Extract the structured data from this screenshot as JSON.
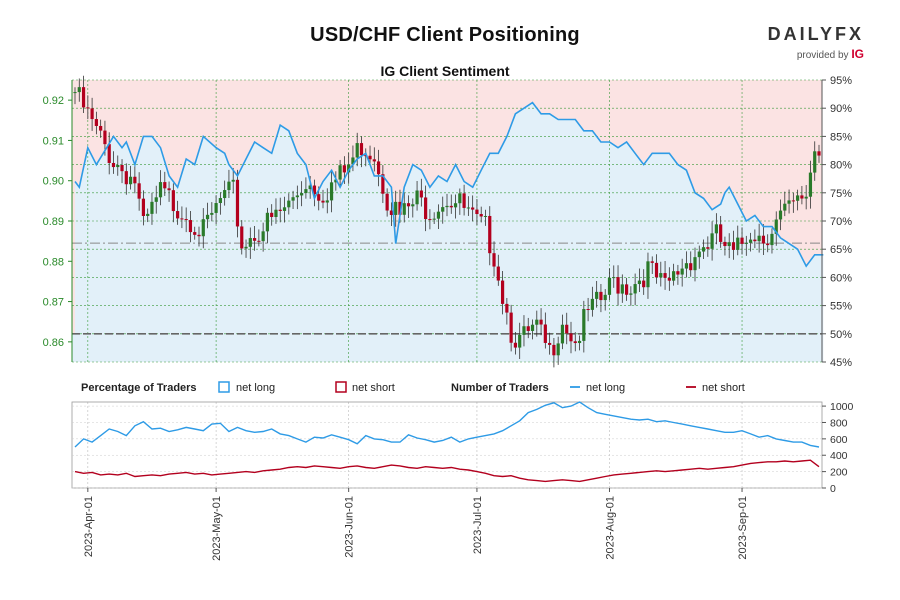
{
  "chart_data": {
    "type": "candlestick_with_sentiment",
    "title": "USD/CHF Client Positioning",
    "subtitle": "IG Client Sentiment",
    "brand": {
      "name": "DAILYFX",
      "provided_by": "provided by",
      "provider": "IG"
    },
    "price_axis": {
      "ticks": [
        "0.92",
        "0.91",
        "0.90",
        "0.89",
        "0.88",
        "0.87",
        "0.86"
      ],
      "ylim": [
        0.855,
        0.925
      ]
    },
    "percent_axis": {
      "ticks": [
        "95%",
        "90%",
        "85%",
        "80%",
        "75%",
        "70%",
        "65%",
        "60%",
        "55%",
        "50%",
        "45%"
      ],
      "ylim": [
        45,
        95
      ]
    },
    "count_axis": {
      "ticks": [
        "1000",
        "800",
        "600",
        "400",
        "200",
        "0"
      ],
      "ylim": [
        0,
        1050
      ]
    },
    "date_labels": [
      "2023-Apr-01",
      "2023-May-01",
      "2023-Jun-01",
      "2023-Jul-01",
      "2023-Aug-01",
      "2023-Sep-01"
    ],
    "date_index": [
      3,
      33,
      64,
      94,
      125,
      156
    ],
    "n_days": 175,
    "reference_lines": {
      "price_dash": 0.8845,
      "percent_50": 50
    },
    "legend": {
      "pct_title": "Percentage of Traders",
      "num_title": "Number of Traders",
      "net_long": "net long",
      "net_short": "net short"
    },
    "colors": {
      "long": "#2e9be6",
      "short": "#b3001e",
      "up": "#2a7a2a",
      "down": "#b3001e",
      "axis_green": "#2a8a2a",
      "bg_long": "#e2f0f9",
      "bg_short": "#fbe3e3"
    },
    "close_path": [
      [
        0,
        0.922
      ],
      [
        5,
        0.912
      ],
      [
        9,
        0.905
      ],
      [
        14,
        0.9
      ],
      [
        16,
        0.888
      ],
      [
        20,
        0.897
      ],
      [
        26,
        0.892
      ],
      [
        30,
        0.887
      ],
      [
        34,
        0.895
      ],
      [
        37,
        0.897
      ],
      [
        39,
        0.884
      ],
      [
        42,
        0.887
      ],
      [
        46,
        0.89
      ],
      [
        50,
        0.894
      ],
      [
        54,
        0.9
      ],
      [
        58,
        0.897
      ],
      [
        63,
        0.902
      ],
      [
        67,
        0.909
      ],
      [
        70,
        0.907
      ],
      [
        73,
        0.896
      ],
      [
        76,
        0.891
      ],
      [
        80,
        0.895
      ],
      [
        83,
        0.893
      ],
      [
        87,
        0.896
      ],
      [
        90,
        0.894
      ],
      [
        94,
        0.889
      ],
      [
        96,
        0.888
      ],
      [
        98,
        0.882
      ],
      [
        100,
        0.872
      ],
      [
        102,
        0.863
      ],
      [
        104,
        0.86
      ],
      [
        108,
        0.863
      ],
      [
        111,
        0.857
      ],
      [
        114,
        0.866
      ],
      [
        117,
        0.86
      ],
      [
        120,
        0.867
      ],
      [
        123,
        0.87
      ],
      [
        126,
        0.875
      ],
      [
        130,
        0.874
      ],
      [
        134,
        0.878
      ],
      [
        138,
        0.873
      ],
      [
        142,
        0.879
      ],
      [
        146,
        0.883
      ],
      [
        150,
        0.886
      ],
      [
        154,
        0.881
      ],
      [
        158,
        0.888
      ],
      [
        161,
        0.886
      ],
      [
        165,
        0.891
      ],
      [
        169,
        0.894
      ],
      [
        171,
        0.897
      ],
      [
        173,
        0.908
      ]
    ],
    "long_pct_path": [
      [
        0,
        77
      ],
      [
        1,
        76
      ],
      [
        3,
        83
      ],
      [
        5,
        80
      ],
      [
        9,
        85
      ],
      [
        11,
        83
      ],
      [
        12,
        84
      ],
      [
        14,
        80
      ],
      [
        16,
        85
      ],
      [
        18,
        85
      ],
      [
        20,
        83
      ],
      [
        22,
        78
      ],
      [
        24,
        76
      ],
      [
        26,
        81
      ],
      [
        28,
        80
      ],
      [
        30,
        85
      ],
      [
        33,
        83
      ],
      [
        35,
        82
      ],
      [
        36,
        80
      ],
      [
        38,
        78
      ],
      [
        40,
        81
      ],
      [
        42,
        84
      ],
      [
        44,
        83
      ],
      [
        46,
        82
      ],
      [
        48,
        87
      ],
      [
        50,
        86
      ],
      [
        52,
        82
      ],
      [
        54,
        80
      ],
      [
        56,
        74
      ],
      [
        58,
        77
      ],
      [
        60,
        79
      ],
      [
        62,
        76
      ],
      [
        64,
        79
      ],
      [
        66,
        81
      ],
      [
        68,
        82
      ],
      [
        70,
        78
      ],
      [
        72,
        78
      ],
      [
        74,
        76
      ],
      [
        75,
        66
      ],
      [
        77,
        76
      ],
      [
        79,
        80
      ],
      [
        81,
        79
      ],
      [
        83,
        76
      ],
      [
        85,
        78
      ],
      [
        87,
        77
      ],
      [
        89,
        80
      ],
      [
        91,
        77
      ],
      [
        93,
        76
      ],
      [
        95,
        79
      ],
      [
        97,
        82
      ],
      [
        99,
        82
      ],
      [
        101,
        85
      ],
      [
        103,
        89
      ],
      [
        105,
        90
      ],
      [
        107,
        91
      ],
      [
        109,
        89
      ],
      [
        111,
        89
      ],
      [
        113,
        88
      ],
      [
        115,
        88
      ],
      [
        117,
        88
      ],
      [
        119,
        86
      ],
      [
        121,
        86
      ],
      [
        123,
        84
      ],
      [
        125,
        84
      ],
      [
        127,
        83
      ],
      [
        129,
        84
      ],
      [
        131,
        82
      ],
      [
        133,
        80
      ],
      [
        135,
        82
      ],
      [
        137,
        82
      ],
      [
        139,
        82
      ],
      [
        141,
        80
      ],
      [
        143,
        79
      ],
      [
        145,
        75
      ],
      [
        147,
        74
      ],
      [
        149,
        72
      ],
      [
        151,
        73
      ],
      [
        152,
        75
      ],
      [
        153,
        76
      ],
      [
        155,
        73
      ],
      [
        157,
        70
      ],
      [
        159,
        71
      ],
      [
        161,
        69
      ],
      [
        163,
        69
      ],
      [
        165,
        67
      ],
      [
        167,
        66
      ],
      [
        169,
        65
      ],
      [
        171,
        62
      ],
      [
        173,
        64
      ],
      [
        175,
        64
      ]
    ],
    "count_long_path": [
      [
        0,
        500
      ],
      [
        2,
        600
      ],
      [
        4,
        560
      ],
      [
        6,
        640
      ],
      [
        8,
        720
      ],
      [
        10,
        690
      ],
      [
        12,
        640
      ],
      [
        14,
        760
      ],
      [
        16,
        810
      ],
      [
        18,
        720
      ],
      [
        20,
        730
      ],
      [
        22,
        690
      ],
      [
        24,
        710
      ],
      [
        26,
        740
      ],
      [
        28,
        720
      ],
      [
        30,
        700
      ],
      [
        32,
        780
      ],
      [
        34,
        790
      ],
      [
        36,
        690
      ],
      [
        38,
        740
      ],
      [
        40,
        700
      ],
      [
        42,
        680
      ],
      [
        44,
        690
      ],
      [
        46,
        720
      ],
      [
        48,
        660
      ],
      [
        50,
        640
      ],
      [
        52,
        600
      ],
      [
        54,
        560
      ],
      [
        56,
        620
      ],
      [
        58,
        610
      ],
      [
        60,
        650
      ],
      [
        62,
        620
      ],
      [
        64,
        590
      ],
      [
        66,
        540
      ],
      [
        68,
        640
      ],
      [
        70,
        600
      ],
      [
        72,
        590
      ],
      [
        74,
        560
      ],
      [
        76,
        560
      ],
      [
        78,
        650
      ],
      [
        80,
        610
      ],
      [
        82,
        590
      ],
      [
        84,
        560
      ],
      [
        86,
        580
      ],
      [
        88,
        620
      ],
      [
        90,
        560
      ],
      [
        92,
        600
      ],
      [
        94,
        620
      ],
      [
        96,
        640
      ],
      [
        98,
        660
      ],
      [
        100,
        700
      ],
      [
        102,
        760
      ],
      [
        104,
        820
      ],
      [
        106,
        920
      ],
      [
        108,
        960
      ],
      [
        110,
        1010
      ],
      [
        112,
        1040
      ],
      [
        114,
        980
      ],
      [
        116,
        1000
      ],
      [
        118,
        1050
      ],
      [
        120,
        980
      ],
      [
        122,
        920
      ],
      [
        124,
        900
      ],
      [
        126,
        880
      ],
      [
        128,
        860
      ],
      [
        130,
        840
      ],
      [
        132,
        830
      ],
      [
        134,
        840
      ],
      [
        136,
        810
      ],
      [
        138,
        820
      ],
      [
        140,
        800
      ],
      [
        142,
        780
      ],
      [
        144,
        760
      ],
      [
        146,
        740
      ],
      [
        148,
        720
      ],
      [
        150,
        700
      ],
      [
        152,
        680
      ],
      [
        154,
        680
      ],
      [
        156,
        700
      ],
      [
        158,
        660
      ],
      [
        160,
        620
      ],
      [
        162,
        640
      ],
      [
        164,
        600
      ],
      [
        166,
        580
      ],
      [
        168,
        560
      ],
      [
        170,
        560
      ],
      [
        172,
        520
      ],
      [
        174,
        500
      ]
    ],
    "count_short_path": [
      [
        0,
        200
      ],
      [
        2,
        180
      ],
      [
        4,
        190
      ],
      [
        6,
        160
      ],
      [
        8,
        170
      ],
      [
        10,
        160
      ],
      [
        12,
        180
      ],
      [
        14,
        140
      ],
      [
        16,
        150
      ],
      [
        18,
        160
      ],
      [
        20,
        150
      ],
      [
        22,
        170
      ],
      [
        24,
        180
      ],
      [
        26,
        190
      ],
      [
        28,
        170
      ],
      [
        30,
        180
      ],
      [
        32,
        160
      ],
      [
        34,
        170
      ],
      [
        36,
        180
      ],
      [
        38,
        190
      ],
      [
        40,
        200
      ],
      [
        42,
        190
      ],
      [
        44,
        210
      ],
      [
        46,
        220
      ],
      [
        48,
        230
      ],
      [
        50,
        250
      ],
      [
        52,
        260
      ],
      [
        54,
        250
      ],
      [
        56,
        270
      ],
      [
        58,
        260
      ],
      [
        60,
        250
      ],
      [
        62,
        240
      ],
      [
        64,
        260
      ],
      [
        66,
        270
      ],
      [
        68,
        250
      ],
      [
        70,
        240
      ],
      [
        72,
        260
      ],
      [
        74,
        280
      ],
      [
        76,
        270
      ],
      [
        78,
        250
      ],
      [
        80,
        240
      ],
      [
        82,
        260
      ],
      [
        84,
        250
      ],
      [
        86,
        240
      ],
      [
        88,
        250
      ],
      [
        90,
        230
      ],
      [
        92,
        220
      ],
      [
        94,
        200
      ],
      [
        96,
        180
      ],
      [
        98,
        150
      ],
      [
        100,
        140
      ],
      [
        102,
        150
      ],
      [
        104,
        120
      ],
      [
        106,
        100
      ],
      [
        108,
        90
      ],
      [
        110,
        80
      ],
      [
        112,
        90
      ],
      [
        114,
        100
      ],
      [
        116,
        90
      ],
      [
        118,
        80
      ],
      [
        120,
        100
      ],
      [
        122,
        120
      ],
      [
        124,
        140
      ],
      [
        126,
        160
      ],
      [
        128,
        170
      ],
      [
        130,
        180
      ],
      [
        132,
        190
      ],
      [
        134,
        200
      ],
      [
        136,
        210
      ],
      [
        138,
        200
      ],
      [
        140,
        210
      ],
      [
        142,
        220
      ],
      [
        144,
        230
      ],
      [
        146,
        240
      ],
      [
        148,
        230
      ],
      [
        150,
        240
      ],
      [
        152,
        250
      ],
      [
        154,
        260
      ],
      [
        156,
        280
      ],
      [
        158,
        300
      ],
      [
        160,
        310
      ],
      [
        162,
        320
      ],
      [
        164,
        320
      ],
      [
        166,
        330
      ],
      [
        168,
        320
      ],
      [
        170,
        330
      ],
      [
        172,
        340
      ],
      [
        174,
        260
      ]
    ]
  }
}
